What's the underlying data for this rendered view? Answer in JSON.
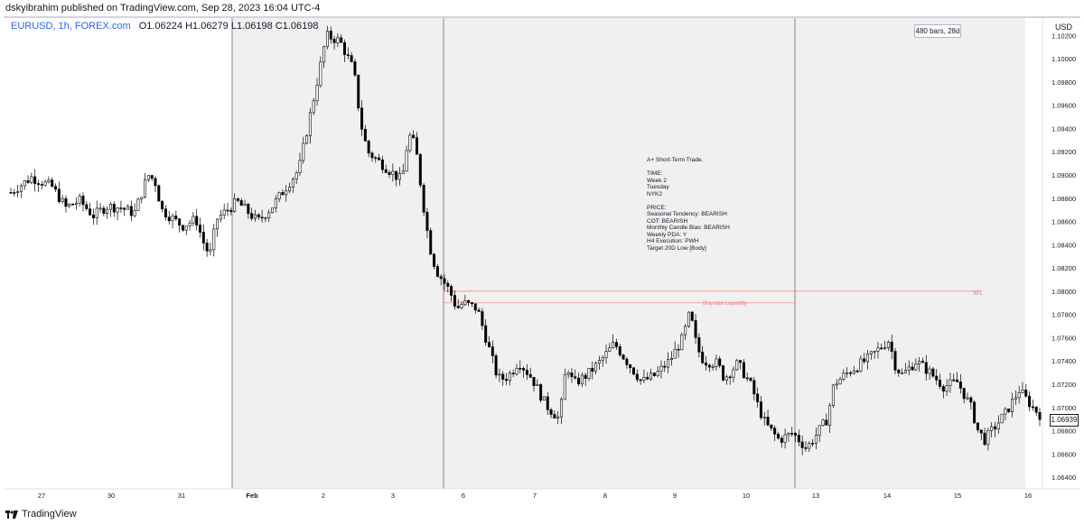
{
  "header": {
    "publish_text": "dskyibrahim published on TradingView.com, Sep 28, 2023 16:04 UTC-4"
  },
  "symbol": {
    "name": "EURUSD, 1h, FOREX.com",
    "ohlc": "O1.06224  H1.06279  L1.06198  C1.06198"
  },
  "price_axis": {
    "currency": "USD",
    "last_price": "1.06939"
  },
  "range_label": "480 bars, 28d",
  "note": {
    "text": "A+ Short-Term Trade.\n\nTIME:\nWeek 2\nTuesday\nNYK2\n\nPRICE:\nSeasonal Tendency: BEARISH\nCOT: BEARISH\nMonthly Candle Bias: BEARISH\nWeekly PDA: Y\nH4 Execution: PWH\nTarget 20D Low [Body]"
  },
  "annotations": {
    "liquidity_label": "Buyside Liquidity",
    "w1_label": "W1"
  },
  "footer": {
    "brand": "TradingView"
  },
  "colors": {
    "background": "#ffffff",
    "shaded_region": "#f0f0f0",
    "candle": "#000000",
    "annotation_red": "#f08080",
    "symbol_blue": "#2962ff"
  },
  "chart_data": {
    "type": "candlestick",
    "title": "EURUSD, 1h, FOREX.com",
    "ylabel": "USD",
    "ylim": [
      1.063,
      1.1035
    ],
    "y_ticks": [
      "1.10200",
      "1.10000",
      "1.09800",
      "1.09600",
      "1.09400",
      "1.09200",
      "1.09000",
      "1.08800",
      "1.08600",
      "1.08400",
      "1.08200",
      "1.08000",
      "1.07800",
      "1.07600",
      "1.07400",
      "1.07200",
      "1.07000",
      "1.06800",
      "1.06600",
      "1.06400"
    ],
    "x_ticks": [
      "27",
      "30",
      "31",
      "Feb",
      "2",
      "3",
      "6",
      "7",
      "8",
      "9",
      "10",
      "13",
      "14",
      "15",
      "16"
    ],
    "price_path": [
      [
        0,
        1.0885
      ],
      [
        3,
        1.0898
      ],
      [
        6,
        1.089
      ],
      [
        8,
        1.0872
      ],
      [
        10,
        1.0878
      ],
      [
        12,
        1.0865
      ],
      [
        14,
        1.0873
      ],
      [
        16,
        1.0872
      ],
      [
        18,
        1.0867
      ],
      [
        20,
        1.09
      ],
      [
        21,
        1.0895
      ],
      [
        22,
        1.087
      ],
      [
        25,
        1.0856
      ],
      [
        27,
        1.0862
      ],
      [
        28,
        1.0843
      ],
      [
        29,
        1.083
      ],
      [
        30,
        1.0862
      ],
      [
        33,
        1.0877
      ],
      [
        36,
        1.086
      ],
      [
        38,
        1.0872
      ],
      [
        42,
        1.0905
      ],
      [
        45,
        1.099
      ],
      [
        46,
        1.102
      ],
      [
        48,
        1.1015
      ],
      [
        50,
        1.099
      ],
      [
        51,
        1.0945
      ],
      [
        52,
        1.092
      ],
      [
        54,
        1.091
      ],
      [
        57,
        1.0895
      ],
      [
        58,
        1.0935
      ],
      [
        59,
        1.0925
      ],
      [
        60,
        1.088
      ],
      [
        61,
        1.084
      ],
      [
        62,
        1.0818
      ],
      [
        64,
        1.08
      ],
      [
        65,
        1.0785
      ],
      [
        66,
        1.079
      ],
      [
        68,
        1.0785
      ],
      [
        70,
        1.0745
      ],
      [
        71,
        1.0725
      ],
      [
        72,
        1.0725
      ],
      [
        73,
        1.073
      ],
      [
        74,
        1.074
      ],
      [
        76,
        1.0725
      ],
      [
        78,
        1.0702
      ],
      [
        80,
        1.069
      ],
      [
        81,
        1.0738
      ],
      [
        82,
        1.072
      ],
      [
        84,
        1.0728
      ],
      [
        86,
        1.074
      ],
      [
        88,
        1.0755
      ],
      [
        90,
        1.0738
      ],
      [
        92,
        1.0722
      ],
      [
        94,
        1.0728
      ],
      [
        96,
        1.074
      ],
      [
        98,
        1.076
      ],
      [
        99,
        1.0782
      ],
      [
        100,
        1.0752
      ],
      [
        101,
        1.074
      ],
      [
        103,
        1.0738
      ],
      [
        104,
        1.0725
      ],
      [
        106,
        1.0738
      ],
      [
        108,
        1.0718
      ],
      [
        109,
        1.07
      ],
      [
        110,
        1.0686
      ],
      [
        112,
        1.0672
      ],
      [
        114,
        1.0678
      ],
      [
        116,
        1.0665
      ],
      [
        117,
        1.0673
      ],
      [
        119,
        1.069
      ],
      [
        120,
        1.072
      ],
      [
        122,
        1.073
      ],
      [
        125,
        1.0742
      ],
      [
        128,
        1.0758
      ],
      [
        129,
        1.0735
      ],
      [
        130,
        1.0728
      ],
      [
        132,
        1.074
      ],
      [
        134,
        1.073
      ],
      [
        136,
        1.0718
      ],
      [
        138,
        1.0722
      ],
      [
        140,
        1.07
      ],
      [
        141,
        1.068
      ],
      [
        142,
        1.0672
      ],
      [
        143,
        1.068
      ],
      [
        145,
        1.0695
      ],
      [
        147,
        1.0715
      ],
      [
        149,
        1.07
      ],
      [
        150,
        1.0694
      ]
    ]
  }
}
